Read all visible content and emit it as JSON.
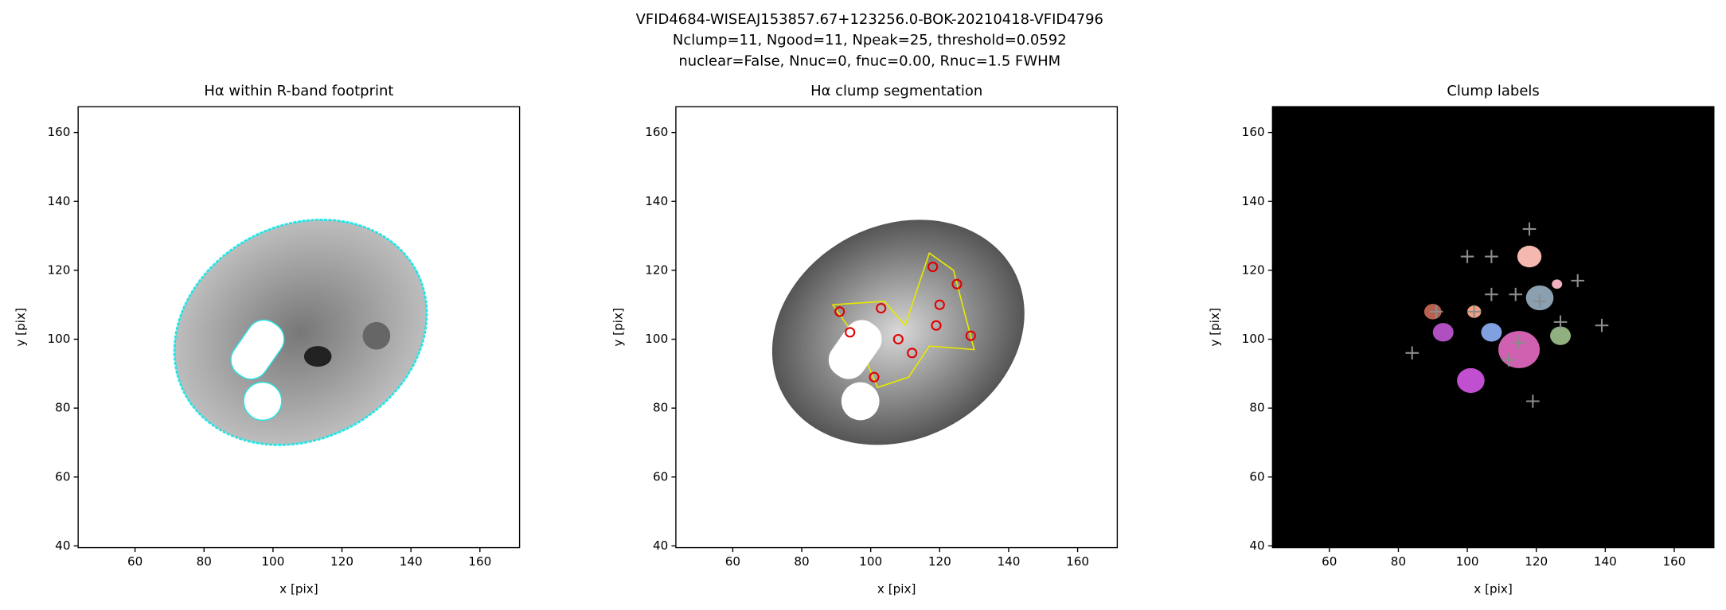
{
  "suptitle": [
    "VFID4684-WISEAJ153857.67+123256.0-BOK-20210418-VFID4796",
    "Nclump=11, Ngood=11, Npeak=25, threshold=0.0592",
    "nuclear=False, Nnuc=0, fnuc=0.00, Rnuc=1.5 FWHM"
  ],
  "chart_data": [
    {
      "type": "image",
      "title": "Hα within R-band footprint",
      "xlabel": "x [pix]",
      "ylabel": "y [pix]",
      "xlim": [
        43.5,
        171.5
      ],
      "ylim": [
        39.5,
        167.5
      ],
      "xticks": [
        60,
        80,
        100,
        120,
        140,
        160
      ],
      "yticks": [
        40,
        60,
        80,
        100,
        120,
        140,
        160
      ],
      "contour_color": "#22e5e5"
    },
    {
      "type": "scatter",
      "title": "Hα clump segmentation",
      "xlabel": "x [pix]",
      "ylabel": "y [pix]",
      "xlim": [
        43.5,
        171.5
      ],
      "ylim": [
        39.5,
        167.5
      ],
      "xticks": [
        60,
        80,
        100,
        120,
        140,
        160
      ],
      "yticks": [
        40,
        60,
        80,
        100,
        120,
        140,
        160
      ],
      "contour_color": "#e8e800",
      "x": [
        118,
        120,
        125,
        91,
        94,
        103,
        108,
        119,
        129,
        112,
        101
      ],
      "values": [
        121,
        110,
        116,
        108,
        102,
        109,
        100,
        104,
        101,
        96,
        89
      ],
      "color": "#e00000"
    },
    {
      "type": "scatter",
      "title": "Clump labels",
      "xlabel": "x [pix]",
      "ylabel": "y [pix]",
      "xlim": [
        43.5,
        171.5
      ],
      "ylim": [
        39.5,
        167.5
      ],
      "xticks": [
        60,
        80,
        100,
        120,
        140,
        160
      ],
      "yticks": [
        40,
        60,
        80,
        100,
        120,
        140,
        160
      ],
      "x": [
        118,
        100,
        107,
        132,
        107,
        114,
        121,
        84,
        139,
        127,
        119,
        115,
        112,
        91,
        102
      ],
      "values": [
        132,
        124,
        124,
        117,
        113,
        113,
        111,
        96,
        104,
        105,
        82,
        99,
        94,
        108,
        108
      ],
      "color": "#8c8c8c"
    }
  ]
}
